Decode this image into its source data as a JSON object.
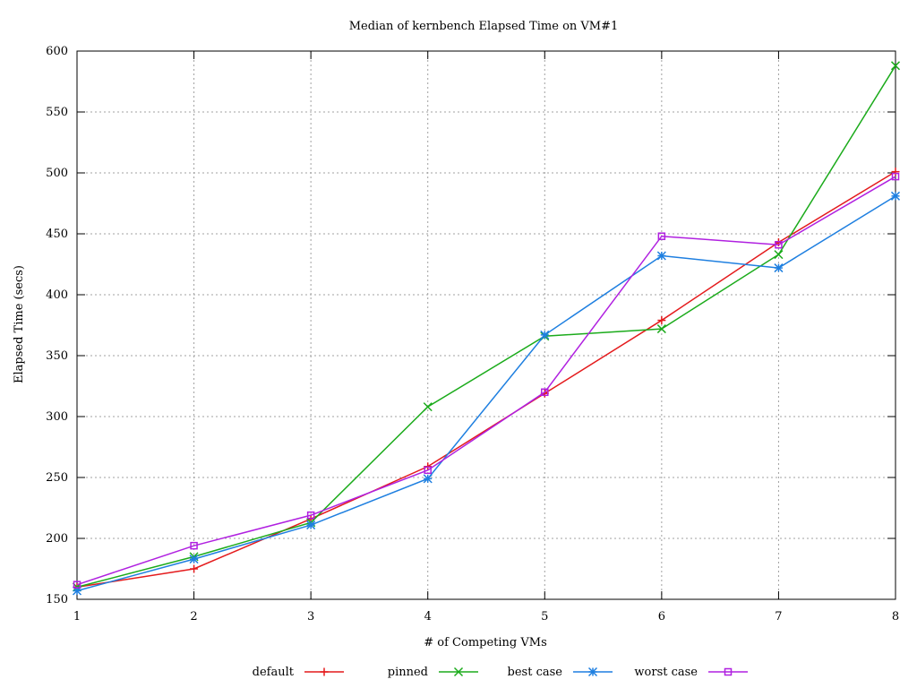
{
  "chart_data": {
    "type": "line",
    "title": "Median of kernbench Elapsed Time on VM#1",
    "xlabel": "# of Competing VMs",
    "ylabel": "Elapsed Time (secs)",
    "xlim": [
      1,
      8
    ],
    "ylim": [
      150,
      600
    ],
    "x_ticks": [
      1,
      2,
      3,
      4,
      5,
      6,
      7,
      8
    ],
    "y_ticks": [
      150,
      200,
      250,
      300,
      350,
      400,
      450,
      500,
      550,
      600
    ],
    "grid": true,
    "legend_position": "bottom",
    "x": [
      1,
      2,
      3,
      4,
      5,
      6,
      7,
      8
    ],
    "series": [
      {
        "name": "default",
        "color": "#e41a1c",
        "marker": "plus",
        "values": [
          160,
          175,
          216,
          259,
          319,
          379,
          443,
          501
        ]
      },
      {
        "name": "pinned",
        "color": "#1bab1b",
        "marker": "cross",
        "values": [
          160,
          185,
          213,
          308,
          366,
          372,
          433,
          588
        ]
      },
      {
        "name": "best case",
        "color": "#1e7fe0",
        "marker": "star",
        "values": [
          157,
          183,
          211,
          249,
          367,
          432,
          422,
          481
        ]
      },
      {
        "name": "worst case",
        "color": "#b020e0",
        "marker": "square",
        "values": [
          162,
          194,
          219,
          256,
          320,
          448,
          441,
          497
        ]
      }
    ]
  }
}
